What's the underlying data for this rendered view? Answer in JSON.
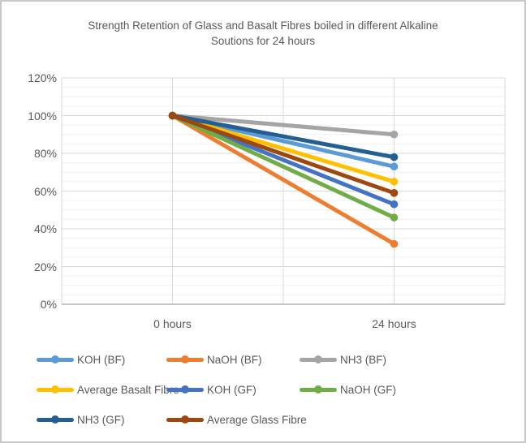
{
  "chart_data": {
    "type": "line",
    "title": "Strength Retention of Glass and Basalt Fibres boiled in different Alkaline Soutions for 24 hours",
    "title_lines": [
      "Strength Retention of Glass and Basalt Fibres boiled in different Alkaline",
      "Soutions for 24 hours"
    ],
    "categories": [
      "0 hours",
      "24 hours"
    ],
    "series": [
      {
        "name": "KOH (BF)",
        "color": "#5B9BD5",
        "values": [
          100,
          73
        ]
      },
      {
        "name": "NaOH (BF)",
        "color": "#ED7D31",
        "values": [
          100,
          32
        ]
      },
      {
        "name": "NH3 (BF)",
        "color": "#A5A5A5",
        "values": [
          100,
          90
        ]
      },
      {
        "name": "Average Basalt Fibre",
        "color": "#FFC000",
        "values": [
          100,
          65
        ]
      },
      {
        "name": "KOH (GF)",
        "color": "#4472C4",
        "values": [
          100,
          53
        ]
      },
      {
        "name": "NaOH (GF)",
        "color": "#70AD47",
        "values": [
          100,
          46
        ]
      },
      {
        "name": "NH3 (GF)",
        "color": "#255E91",
        "values": [
          100,
          78
        ]
      },
      {
        "name": "Average Glass Fibre",
        "color": "#9E480E",
        "values": [
          100,
          59
        ]
      }
    ],
    "y_axis": {
      "min": 0,
      "max": 120,
      "major_step": 20,
      "minor_step": 5,
      "tick_labels": [
        "0%",
        "20%",
        "40%",
        "60%",
        "80%",
        "100%",
        "120%"
      ]
    },
    "xlabel": "",
    "ylabel": "",
    "grid": {
      "major_color": "#D9D9D9",
      "minor_color": "#F0F0F0",
      "axis_color": "#C6C6C6",
      "vertical_on": true,
      "minor_on": true
    },
    "legend_position": "bottom",
    "text_color": "#595959",
    "marker": "circle"
  }
}
